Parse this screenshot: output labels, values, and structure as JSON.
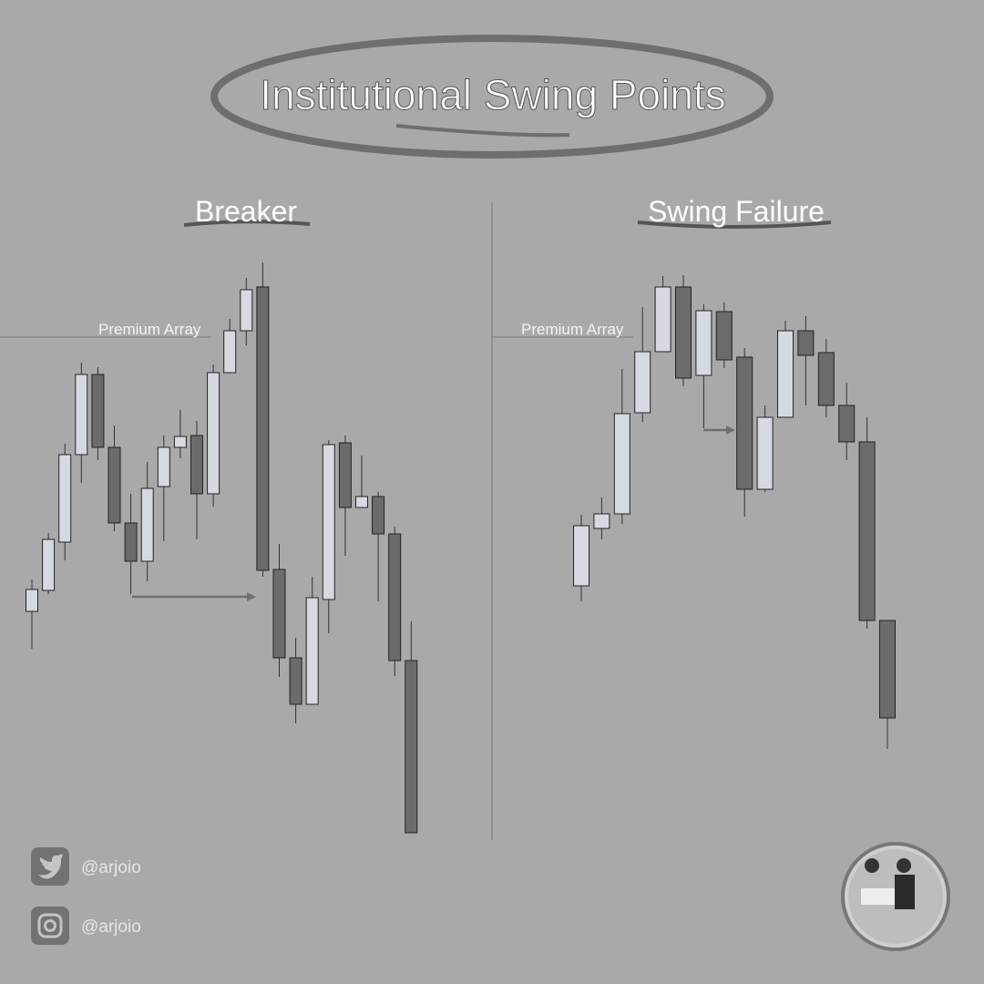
{
  "header": {
    "title": "Institutional Swing Points"
  },
  "chart_data": [
    {
      "type": "candlestick",
      "title": "Breaker",
      "open": [
        329,
        352,
        405,
        501,
        589,
        509,
        426,
        384,
        466,
        509,
        522,
        458,
        591,
        637,
        685,
        375,
        278,
        227,
        342,
        514,
        443,
        455,
        414,
        275
      ],
      "high": [
        364,
        415,
        513,
        602,
        597,
        533,
        458,
        493,
        522,
        550,
        538,
        600,
        650,
        695,
        712,
        403,
        300,
        367,
        517,
        522,
        500,
        460,
        422,
        318
      ],
      "low": [
        288,
        348,
        385,
        470,
        495,
        417,
        348,
        362,
        406,
        497,
        408,
        444,
        590,
        621,
        367,
        257,
        206,
        227,
        305,
        390,
        443,
        340,
        258,
        86
      ],
      "close": [
        353,
        408,
        501,
        589,
        509,
        426,
        384,
        464,
        509,
        521,
        458,
        591,
        637,
        682,
        374,
        278,
        227,
        344,
        512,
        443,
        455,
        414,
        275,
        86
      ],
      "up_color": "#d6d9e1",
      "down_color": "#6b6b6b",
      "ylim": [
        0,
        1000
      ],
      "annotation": {
        "text": "Premium Array",
        "value": 630
      }
    },
    {
      "type": "candlestick",
      "title": "Swing Failure",
      "open": [
        357,
        420,
        436,
        547,
        614,
        685,
        588,
        658,
        608,
        463,
        542,
        637,
        613,
        555,
        515,
        319
      ],
      "high": [
        435,
        454,
        595,
        663,
        697,
        698,
        666,
        668,
        618,
        555,
        648,
        653,
        628,
        580,
        542,
        319
      ],
      "low": [
        340,
        408,
        425,
        537,
        614,
        576,
        530,
        596,
        433,
        460,
        542,
        555,
        542,
        495,
        310,
        178
      ],
      "close": [
        423,
        436,
        546,
        614,
        685,
        585,
        659,
        605,
        463,
        542,
        637,
        610,
        555,
        515,
        319,
        212
      ],
      "up_color": "#d6d9e1",
      "down_color": "#6b6b6b",
      "ylim": [
        0,
        1000
      ],
      "annotation": {
        "text": "Premium Array",
        "value": 630
      }
    }
  ],
  "footer": {
    "twitter": "@arjoio",
    "instagram": "@arjoio"
  }
}
